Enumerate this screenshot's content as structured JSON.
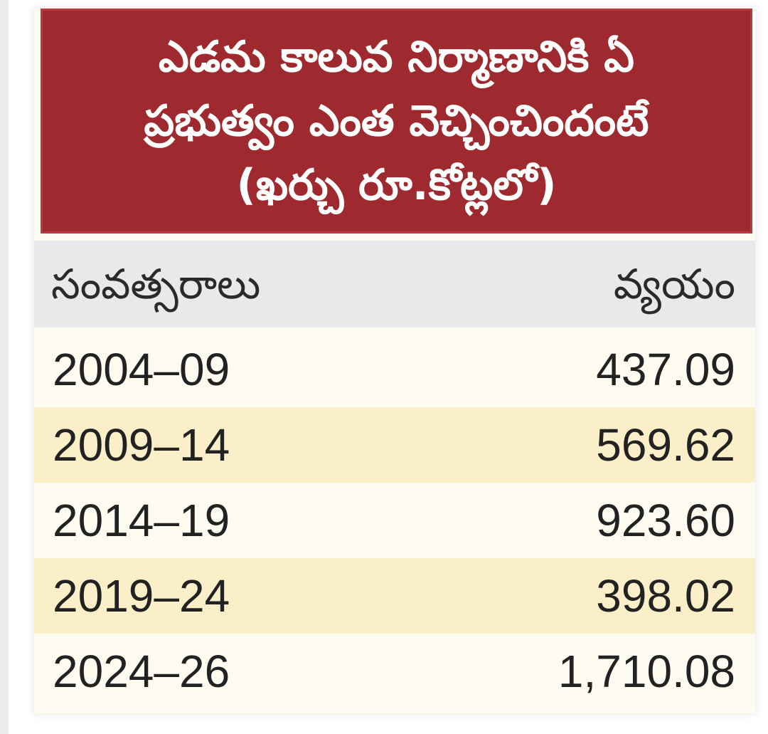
{
  "colors": {
    "title_background": "#9e2a2f",
    "title_text": "#ffffff",
    "header_background": "#e9e8ea",
    "row_shaded": "#fbefc9",
    "row_plain": "#fefbf0"
  },
  "chart_data": {
    "type": "table",
    "title_lines": [
      "ఎడమ కాలువ నిర్మాణానికి ఏ",
      "ప్రభుత్వం ఎంత వెచ్చించిందంటే",
      "(ఖర్చు రూ.కోట్లలో)"
    ],
    "columns": [
      "సంవత్సరాలు",
      "వ్యయం"
    ],
    "rows": [
      {
        "period": "2004–09",
        "value": "437.09"
      },
      {
        "period": "2009–14",
        "value": "569.62"
      },
      {
        "period": "2014–19",
        "value": "923.60"
      },
      {
        "period": "2019–24",
        "value": "398.02"
      },
      {
        "period": "2024–26",
        "value": "1,710.08"
      }
    ]
  }
}
